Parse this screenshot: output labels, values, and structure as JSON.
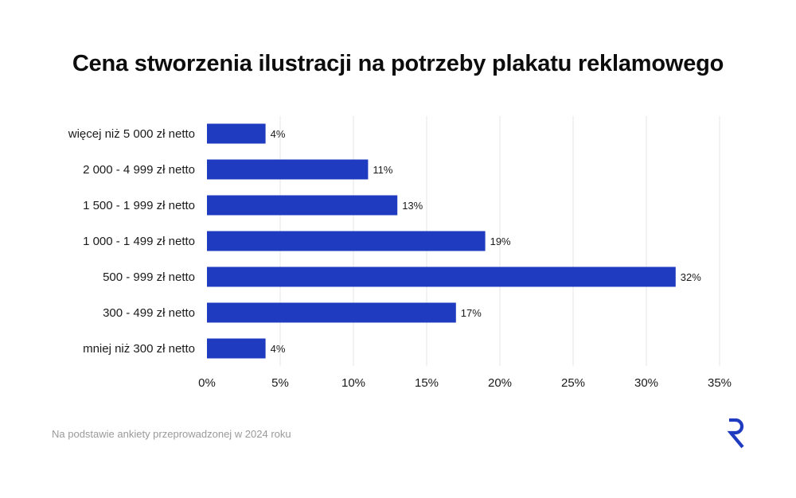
{
  "chart_data": {
    "type": "bar",
    "orientation": "horizontal",
    "title": "Cena stworzenia ilustracji na potrzeby plakatu reklamowego",
    "categories": [
      "więcej niż 5 000 zł netto",
      "2 000 - 4 999 zł netto",
      "1 500 - 1 999 zł netto",
      "1 000 - 1 499 zł netto",
      "500 - 999 zł netto",
      "300 - 499 zł netto",
      "mniej niż 300 zł netto"
    ],
    "values": [
      4,
      11,
      13,
      19,
      32,
      17,
      4
    ],
    "value_labels": [
      "4%",
      "11%",
      "13%",
      "19%",
      "32%",
      "17%",
      "4%"
    ],
    "xlim": [
      0,
      35
    ],
    "xticks": [
      0,
      5,
      10,
      15,
      20,
      25,
      30,
      35
    ],
    "xtick_labels": [
      "0%",
      "5%",
      "10%",
      "15%",
      "20%",
      "25%",
      "30%",
      "35%"
    ],
    "xlabel": "",
    "ylabel": "",
    "grid": "vertical",
    "legend": "none",
    "bar_color": "#1F3BBF",
    "grid_color": "#E6E6E6"
  },
  "footer": {
    "note": "Na podstawie ankiety przeprowadzonej w 2024 roku"
  },
  "logo": {
    "icon": "r-logo-icon",
    "color": "#1F3BBF"
  }
}
